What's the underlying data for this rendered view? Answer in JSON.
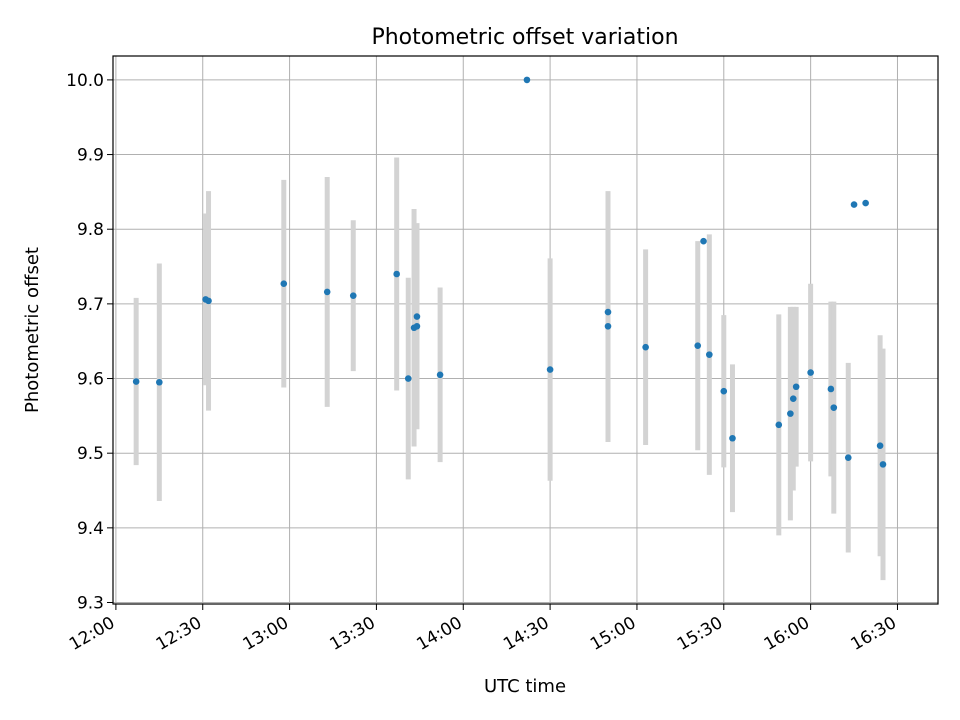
{
  "chart_data": {
    "type": "scatter",
    "title": "Photometric offset variation",
    "xlabel": "UTC time",
    "ylabel": "Photometric offset",
    "xlim": [
      "11:59",
      "16:44"
    ],
    "ylim": [
      9.298,
      10.032
    ],
    "x_ticks": [
      "12:00",
      "12:30",
      "13:00",
      "13:30",
      "14:00",
      "14:30",
      "15:00",
      "15:30",
      "16:00",
      "16:30"
    ],
    "y_ticks": [
      9.3,
      9.4,
      9.5,
      9.6,
      9.7,
      9.8,
      9.9,
      10.0
    ],
    "grid": true,
    "point_color": "#1f77b4",
    "errorbar_color": "#d3d3d3",
    "points": [
      {
        "t": "12:07",
        "y": 9.596,
        "err": 0.112
      },
      {
        "t": "12:15",
        "y": 9.595,
        "err": 0.159
      },
      {
        "t": "12:31",
        "y": 9.706,
        "err": 0.115
      },
      {
        "t": "12:32",
        "y": 9.704,
        "err": 0.147
      },
      {
        "t": "12:58",
        "y": 9.727,
        "err": 0.139
      },
      {
        "t": "13:13",
        "y": 9.716,
        "err": 0.154
      },
      {
        "t": "13:22",
        "y": 9.711,
        "err": 0.101
      },
      {
        "t": "13:37",
        "y": 9.74,
        "err": 0.156
      },
      {
        "t": "13:41",
        "y": 9.6,
        "err": 0.135
      },
      {
        "t": "13:43",
        "y": 9.668,
        "err": 0.159
      },
      {
        "t": "13:44",
        "y": 9.67,
        "err": 0.138
      },
      {
        "t": "13:44",
        "y": 9.683,
        "err": 0.125
      },
      {
        "t": "13:52",
        "y": 9.605,
        "err": 0.117
      },
      {
        "t": "14:22",
        "y": 10.0,
        "err": 0
      },
      {
        "t": "14:30",
        "y": 9.612,
        "err": 0.149
      },
      {
        "t": "14:50",
        "y": 9.67,
        "err": 0.155
      },
      {
        "t": "14:50",
        "y": 9.689,
        "err": 0.162
      },
      {
        "t": "15:03",
        "y": 9.642,
        "err": 0.131
      },
      {
        "t": "15:21",
        "y": 9.644,
        "err": 0.14
      },
      {
        "t": "15:23",
        "y": 9.784,
        "err": 0
      },
      {
        "t": "15:25",
        "y": 9.632,
        "err": 0.161
      },
      {
        "t": "15:30",
        "y": 9.583,
        "err": 0.102
      },
      {
        "t": "15:33",
        "y": 9.52,
        "err": 0.099
      },
      {
        "t": "15:49",
        "y": 9.538,
        "err": 0.148
      },
      {
        "t": "15:53",
        "y": 9.553,
        "err": 0.143
      },
      {
        "t": "15:54",
        "y": 9.573,
        "err": 0.123
      },
      {
        "t": "15:55",
        "y": 9.589,
        "err": 0.107
      },
      {
        "t": "16:00",
        "y": 9.608,
        "err": 0.119
      },
      {
        "t": "16:07",
        "y": 9.586,
        "err": 0.117
      },
      {
        "t": "16:08",
        "y": 9.561,
        "err": 0.142
      },
      {
        "t": "16:13",
        "y": 9.494,
        "err": 0.127
      },
      {
        "t": "16:15",
        "y": 9.833,
        "err": 0
      },
      {
        "t": "16:19",
        "y": 9.835,
        "err": 0
      },
      {
        "t": "16:24",
        "y": 9.51,
        "err": 0.148
      },
      {
        "t": "16:25",
        "y": 9.485,
        "err": 0.155
      }
    ]
  }
}
